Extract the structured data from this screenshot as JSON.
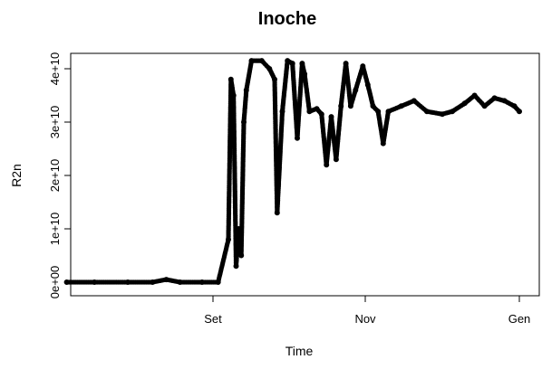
{
  "chart_data": {
    "type": "scatter",
    "title": "Inoche",
    "xlabel": "Time",
    "ylabel": "R2n",
    "x_ticks": [
      "Set",
      "Nov",
      "Gen"
    ],
    "y_ticks": [
      "0e+00",
      "1e+10",
      "2e+10",
      "3e+10",
      "4e+10"
    ],
    "grid": false,
    "legend": "none",
    "marker": "filled-circle",
    "marker_color": "#000000",
    "series": [
      {
        "points": [
          {
            "x": "Jul 10",
            "y": 0
          },
          {
            "x": "Jul 20",
            "y": 0
          },
          {
            "x": "Aug 1",
            "y": 0
          },
          {
            "x": "Aug 10",
            "y": 0
          },
          {
            "x": "Aug 15",
            "y": 500000000.0
          },
          {
            "x": "Aug 20",
            "y": 0
          },
          {
            "x": "Aug 28",
            "y": 0
          },
          {
            "x": "Sep 3",
            "y": 0
          },
          {
            "x": "Sep 7",
            "y": 8000000000.0
          },
          {
            "x": "Sep 8",
            "y": 38000000000.0
          },
          {
            "x": "Sep 9",
            "y": 35000000000.0
          },
          {
            "x": "Sep 10",
            "y": 3000000000.0
          },
          {
            "x": "Sep 11",
            "y": 10000000000.0
          },
          {
            "x": "Sep 12",
            "y": 5000000000.0
          },
          {
            "x": "Sep 13",
            "y": 30000000000.0
          },
          {
            "x": "Sep 14",
            "y": 36000000000.0
          },
          {
            "x": "Sep 16",
            "y": 41500000000.0
          },
          {
            "x": "Sep 20",
            "y": 41500000000.0
          },
          {
            "x": "Sep 23",
            "y": 40000000000.0
          },
          {
            "x": "Sep 25",
            "y": 38000000000.0
          },
          {
            "x": "Sep 26",
            "y": 13000000000.0
          },
          {
            "x": "Sep 28",
            "y": 32000000000.0
          },
          {
            "x": "Sep 30",
            "y": 41500000000.0
          },
          {
            "x": "Oct 2",
            "y": 41000000000.0
          },
          {
            "x": "Oct 4",
            "y": 27000000000.0
          },
          {
            "x": "Oct 6",
            "y": 41000000000.0
          },
          {
            "x": "Oct 7",
            "y": 39000000000.0
          },
          {
            "x": "Oct 9",
            "y": 32000000000.0
          },
          {
            "x": "Oct 12",
            "y": 32500000000.0
          },
          {
            "x": "Oct 14",
            "y": 31500000000.0
          },
          {
            "x": "Oct 16",
            "y": 22000000000.0
          },
          {
            "x": "Oct 18",
            "y": 31000000000.0
          },
          {
            "x": "Oct 20",
            "y": 23000000000.0
          },
          {
            "x": "Oct 22",
            "y": 33000000000.0
          },
          {
            "x": "Oct 24",
            "y": 41000000000.0
          },
          {
            "x": "Oct 26",
            "y": 33000000000.0
          },
          {
            "x": "Oct 28",
            "y": 36000000000.0
          },
          {
            "x": "Oct 31",
            "y": 40500000000.0
          },
          {
            "x": "Nov 2",
            "y": 37000000000.0
          },
          {
            "x": "Nov 4",
            "y": 33000000000.0
          },
          {
            "x": "Nov 6",
            "y": 32000000000.0
          },
          {
            "x": "Nov 8",
            "y": 26000000000.0
          },
          {
            "x": "Nov 10",
            "y": 32000000000.0
          },
          {
            "x": "Nov 15",
            "y": 33000000000.0
          },
          {
            "x": "Nov 20",
            "y": 34000000000.0
          },
          {
            "x": "Nov 25",
            "y": 32000000000.0
          },
          {
            "x": "Dec 1",
            "y": 31500000000.0
          },
          {
            "x": "Dec 5",
            "y": 32000000000.0
          },
          {
            "x": "Dec 10",
            "y": 33500000000.0
          },
          {
            "x": "Dec 14",
            "y": 35000000000.0
          },
          {
            "x": "Dec 18",
            "y": 33000000000.0
          },
          {
            "x": "Dec 22",
            "y": 34500000000.0
          },
          {
            "x": "Dec 26",
            "y": 34000000000.0
          },
          {
            "x": "Dec 30",
            "y": 33000000000.0
          },
          {
            "x": "Jan 1",
            "y": 32000000000.0
          }
        ]
      }
    ]
  }
}
